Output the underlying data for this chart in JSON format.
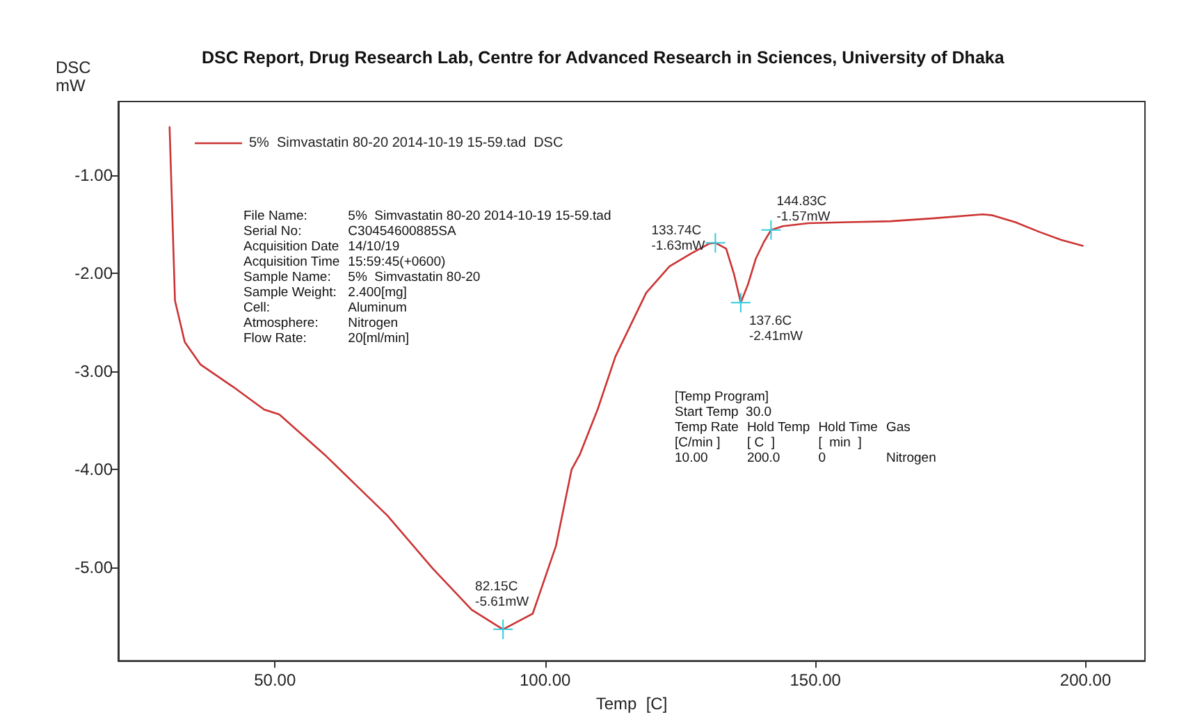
{
  "chart_data": {
    "type": "line",
    "title": "DSC Report, Drug Research Lab, Centre for Advanced Research in Sciences, University of Dhaka",
    "xlabel": "Temp  [C]",
    "ylabel": "DSC\nmW",
    "x": [
      30.5,
      31.5,
      33.3,
      36.2,
      42.3,
      48,
      50.8,
      59.2,
      70.8,
      79.2,
      86.4,
      92.2,
      97.7,
      102,
      104.9,
      106.4,
      109.7,
      113,
      118.7,
      123,
      127,
      130.3,
      131.5,
      133.5,
      135,
      136.2,
      137.5,
      139,
      140.5,
      141.8,
      144,
      148.7,
      156,
      164,
      172,
      181,
      182.8,
      187,
      191.5,
      195.5,
      199.5
    ],
    "series": [
      {
        "name": "5%  Simvastatin 80-20 2014-10-19 15-59.tad  DSC",
        "color": "#cc3333",
        "values": [
          -0.51,
          -2.28,
          -2.7,
          -2.93,
          -3.16,
          -3.39,
          -3.44,
          -3.85,
          -4.47,
          -5.01,
          -5.43,
          -5.63,
          -5.47,
          -4.78,
          -4,
          -3.85,
          -3.39,
          -2.85,
          -2.2,
          -1.93,
          -1.8,
          -1.7,
          -1.69,
          -1.75,
          -2.02,
          -2.3,
          -2.12,
          -1.85,
          -1.68,
          -1.56,
          -1.52,
          -1.49,
          -1.48,
          -1.47,
          -1.44,
          -1.4,
          -1.41,
          -1.48,
          -1.58,
          -1.66,
          -1.72
        ]
      }
    ],
    "xlim": [
      21,
      211
    ],
    "xticks": [
      {
        "value": 50,
        "label": "50.00"
      },
      {
        "value": 100,
        "label": "100.00"
      },
      {
        "value": 150,
        "label": "150.00"
      },
      {
        "value": 200,
        "label": "200.00"
      }
    ],
    "ylim": [
      -5.95,
      -0.25
    ],
    "yticks": [
      {
        "value": -5,
        "label": "-5.00"
      },
      {
        "value": -4,
        "label": "-4.00"
      },
      {
        "value": -3,
        "label": "-3.00"
      },
      {
        "value": -2,
        "label": "-2.00"
      },
      {
        "value": -1,
        "label": "-1.00"
      }
    ],
    "grid": false,
    "legend": "top left",
    "marker": "none",
    "line_style": "solid",
    "annotations": [
      {
        "text": "82.15C\n-5.61mW",
        "x": 92.2,
        "y": -5.63
      },
      {
        "text": "133.74C\n-1.63mW",
        "x": 131.5,
        "y": -1.69
      },
      {
        "text": "137.6C\n-2.41mW",
        "x": 136.2,
        "y": -2.3
      },
      {
        "text": "144.83C\n-1.57mW",
        "x": 141.8,
        "y": -1.56
      },
      "File Name:\t5%  Simvastatin 80-20 2014-10-19 15-59.tad\nSerial No:\tC30454600885SA\nAcquisition Date\t14/10/19\nAcquisition Time\t15:59:45(+0600)\nSample Name:\t5%  Simvastatin 80-20\nSample Weight:\t2.400[mg]\nCell:\tAluminum\nAtmosphere:\tNitrogen\nFlow Rate:\t20[ml/min]",
      "[Temp Program]\nStart Temp  30.0\nTemp Rate\tHold Temp\tHold Time\tGas\n[C/min ]\t[ C  ]\t[  min  ]\t\n10.00\t200.0\t0\tNitrogen"
    ]
  }
}
